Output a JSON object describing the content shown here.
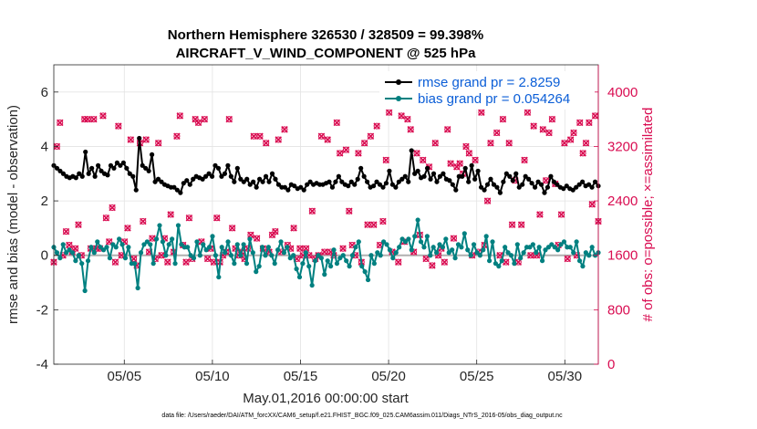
{
  "chart_data": {
    "type": "line",
    "title": "Northern Hemisphere 326530 / 328509 = 99.398%",
    "subtitle": "AIRCRAFT_V_WIND_COMPONENT @ 525 hPa",
    "xlabel": "May.01,2016 00:00:00 start",
    "ylabel_left": "rmse and bias (model - observation)",
    "ylabel_right": "# of obs: o=possible; ×=assimilated",
    "footer": "data file: /Users/raeder/DAI/ATM_forcXX/CAM6_setup/f.e21.FHIST_BGC.f09_025.CAM6assim.011/Diags_NTrS_2016-05/obs_diag_output.nc",
    "x_day_range": [
      1,
      31.9
    ],
    "x_ticks": [
      5,
      10,
      15,
      20,
      25,
      30
    ],
    "x_tick_labels": [
      "05/05",
      "05/10",
      "05/15",
      "05/20",
      "05/25",
      "05/30"
    ],
    "ylim_left": [
      -4,
      7
    ],
    "yticks_left": [
      "6",
      "4",
      "2",
      "0",
      "-2",
      "-4"
    ],
    "ylim_right": [
      0,
      4400
    ],
    "yticks_right": [
      "4000",
      "3200",
      "2400",
      "1600",
      "800",
      "0"
    ],
    "grid": true,
    "legend_location": "top-right",
    "colors": {
      "rmse": "#000000",
      "bias": "#008080",
      "obs": "#d90c51",
      "zero": "#b0b0b0"
    },
    "series": [
      {
        "name": "rmse",
        "legend": "rmse grand pr = 2.8259",
        "color": "#000000",
        "values": [
          3.3,
          3.2,
          3.1,
          3.0,
          2.9,
          2.85,
          2.9,
          2.85,
          3.0,
          2.9,
          3.8,
          3.0,
          3.2,
          2.9,
          3.3,
          3.1,
          3.0,
          2.95,
          3.3,
          3.2,
          3.4,
          3.3,
          3.4,
          3.2,
          3.0,
          2.9,
          2.4,
          4.3,
          3.3,
          3.2,
          3.1,
          3.7,
          2.7,
          2.8,
          2.7,
          2.6,
          2.55,
          2.5,
          2.5,
          2.4,
          2.3,
          2.65,
          2.75,
          2.6,
          2.8,
          2.9,
          2.85,
          2.8,
          2.9,
          3.0,
          2.9,
          3.3,
          3.2,
          2.9,
          3.0,
          3.3,
          2.9,
          2.7,
          3.2,
          2.8,
          2.7,
          2.8,
          2.6,
          2.7,
          2.5,
          2.8,
          2.7,
          2.9,
          2.7,
          3.0,
          2.8,
          2.6,
          2.5,
          2.5,
          2.4,
          2.6,
          2.55,
          2.45,
          2.5,
          2.4,
          2.6,
          2.7,
          2.6,
          2.65,
          2.6,
          2.6,
          2.65,
          2.7,
          2.5,
          2.7,
          2.9,
          2.7,
          2.6,
          2.55,
          2.7,
          2.6,
          2.8,
          3.2,
          2.9,
          2.7,
          2.5,
          2.55,
          2.7,
          2.6,
          2.5,
          2.65,
          3.1,
          2.6,
          2.5,
          2.7,
          2.8,
          2.9,
          2.7,
          3.85,
          3.0,
          3.1,
          2.85,
          2.9,
          3.2,
          2.8,
          3.0,
          2.7,
          2.9,
          3.0,
          2.8,
          2.75,
          2.6,
          2.4,
          2.9,
          2.9,
          3.2,
          2.7,
          3.3,
          2.8,
          3.1,
          2.5,
          2.4,
          2.6,
          2.8,
          2.6,
          2.5,
          2.3,
          2.7,
          3.0,
          2.9,
          2.75,
          3.0,
          2.5,
          2.6,
          2.9,
          2.8,
          2.65,
          2.5,
          2.7,
          2.6,
          2.3,
          2.5,
          2.9,
          2.7,
          2.6,
          2.5,
          2.45,
          2.55,
          2.45,
          2.4,
          2.5,
          2.6,
          2.7,
          2.55,
          2.6,
          2.5,
          2.7,
          2.55
        ]
      },
      {
        "name": "bias",
        "legend": "bias grand pr = 0.054264",
        "color": "#008080",
        "values": [
          0.3,
          0.1,
          -0.1,
          0.4,
          0.1,
          0.2,
          0.1,
          -0.2,
          0.0,
          -0.3,
          -1.3,
          -0.2,
          0.3,
          0.1,
          0.5,
          0.3,
          0.2,
          0.3,
          -0.1,
          0.4,
          0.3,
          0.6,
          0.4,
          -0.1,
          0.3,
          -0.3,
          -0.3,
          -1.2,
          0.1,
          0.4,
          0.5,
          0.4,
          -0.3,
          0.6,
          1.1,
          0.5,
          0.0,
          0.4,
          0.6,
          -0.3,
          1.1,
          0.4,
          0.3,
          0.3,
          0.0,
          -0.1,
          0.5,
          0.0,
          0.4,
          0.2,
          0.3,
          0.7,
          0.0,
          -0.8,
          0.3,
          0.1,
          0.5,
          0.0,
          -0.3,
          0.4,
          0.0,
          0.4,
          -0.3,
          0.6,
          0.1,
          -0.6,
          -0.4,
          0.3,
          0.0,
          0.3,
          0.0,
          -0.3,
          0.2,
          0.5,
          0.1,
          0.3,
          -0.1,
          0.0,
          -0.5,
          -0.8,
          -0.3,
          0.1,
          -0.4,
          -1.1,
          -0.2,
          0.0,
          -0.1,
          -0.7,
          -0.2,
          -0.4,
          0.2,
          -0.3,
          -0.1,
          0.0,
          -0.2,
          -0.4,
          0.0,
          0.3,
          0.5,
          -0.4,
          -0.6,
          -0.9,
          0.0,
          -0.3,
          0.1,
          0.0,
          0.5,
          0.4,
          0.2,
          -0.1,
          0.1,
          0.3,
          0.6,
          0.5,
          0.6,
          0.2,
          0.7,
          1.3,
          0.5,
          0.3,
          0.7,
          0.0,
          0.3,
          0.1,
          0.4,
          0.3,
          0.6,
          0.1,
          0.2,
          -0.1,
          0.4,
          0.3,
          0.8,
          0.2,
          0.0,
          0.4,
          0.1,
          0.0,
          0.2,
          0.7,
          -0.2,
          0.5,
          -0.3,
          -0.4,
          -0.2,
          0.3,
          0.1,
          0.0,
          -0.3,
          0.4,
          -0.1,
          0.1,
          0.3,
          0.3,
          0.4,
          0.1,
          0.3,
          -0.2,
          0.2,
          0.3,
          0.4,
          0.3,
          0.2,
          0.4,
          0.5,
          0.3,
          0.3,
          0.1,
          0.5,
          -0.2,
          -0.4,
          0.1,
          0.0,
          0.3,
          0.0,
          0.1
        ]
      },
      {
        "name": "obs_possible",
        "color": "#d90c51",
        "values": [
          1500,
          3200,
          3550,
          1600,
          1950,
          1750,
          1650,
          1700,
          2050,
          1600,
          3600,
          3600,
          1700,
          3600,
          1700,
          1700,
          3650,
          2150,
          1800,
          2300,
          1500,
          3500,
          1600,
          1800,
          2000,
          3300,
          1550,
          1450,
          3250,
          2100,
          3300,
          1650,
          1850,
          1550,
          3250,
          1600,
          1850,
          1500,
          2200,
          1650,
          3350,
          3650,
          1750,
          1500,
          2150,
          1550,
          3600,
          3550,
          1800,
          3600,
          1550,
          1700,
          1500,
          2150,
          1500,
          1600,
          1650,
          3600,
          2000,
          1700,
          1600,
          1650,
          1550,
          1700,
          1900,
          3350,
          1850,
          3350,
          1700,
          3250,
          1650,
          1900,
          1950,
          3300,
          1650,
          3450,
          1750,
          1700,
          2000,
          1550,
          1700,
          1600,
          1700,
          1600,
          2250,
          1550,
          1600,
          3350,
          1650,
          3300,
          1650,
          1600,
          3550,
          3100,
          1700,
          3150,
          2250,
          1750,
          1600,
          3100,
          1500,
          3250,
          2050,
          3350,
          2050,
          3500,
          1750,
          2100,
          3000,
          3700,
          1650,
          3850,
          1500,
          3650,
          1800,
          3600,
          3450,
          1650,
          3100,
          1900,
          3000,
          1550,
          2900,
          1450,
          3250,
          1600,
          1700,
          1500,
          3450,
          2950,
          1850,
          2900,
          2950,
          2800,
          3200,
          3100,
          1600,
          3000,
          1650,
          3700,
          1750,
          2400,
          3250,
          3800,
          3400,
          1600,
          3600,
          1500,
          3250,
          2050,
          2700,
          1500,
          2050,
          3000,
          3700,
          1600,
          3500,
          1600,
          2200,
          3450,
          2700,
          3400,
          3600,
          2650,
          1750,
          2200,
          3250,
          1550,
          3300,
          3400,
          1600,
          3550,
          3100,
          3250,
          3550,
          2350,
          3650,
          2100
        ]
      },
      {
        "name": "obs_assimilated",
        "color": "#d90c51",
        "values": [
          1500,
          3200,
          3550,
          1600,
          1950,
          1750,
          1650,
          1700,
          2050,
          1600,
          3600,
          3600,
          1700,
          3600,
          1700,
          1700,
          3650,
          2150,
          1800,
          2300,
          1500,
          3500,
          1600,
          1800,
          2000,
          3300,
          1550,
          1450,
          3250,
          2100,
          3300,
          1650,
          1850,
          1550,
          3250,
          1600,
          1850,
          1500,
          2200,
          1650,
          3350,
          3650,
          1750,
          1500,
          2150,
          1550,
          3600,
          3550,
          1800,
          3600,
          1550,
          1700,
          1500,
          2150,
          1500,
          1600,
          1650,
          3600,
          2000,
          1700,
          1600,
          1650,
          1550,
          1700,
          1900,
          3350,
          1850,
          3350,
          1700,
          3250,
          1650,
          1900,
          1950,
          3300,
          1650,
          3450,
          1750,
          1700,
          2000,
          1550,
          1700,
          1600,
          1700,
          1600,
          2250,
          1550,
          1600,
          3350,
          1650,
          3300,
          1650,
          1600,
          3550,
          3100,
          1700,
          3150,
          2250,
          1750,
          1600,
          3100,
          1500,
          3250,
          2050,
          3350,
          2050,
          3500,
          1750,
          2100,
          3000,
          3700,
          1650,
          3850,
          1500,
          3650,
          1800,
          3600,
          3450,
          1650,
          3100,
          1900,
          3000,
          1550,
          2900,
          1450,
          3250,
          1600,
          1700,
          1500,
          3450,
          2950,
          1850,
          2900,
          2950,
          2800,
          3200,
          3100,
          1600,
          3000,
          1650,
          3700,
          1750,
          2400,
          3250,
          3800,
          3400,
          1600,
          3600,
          1500,
          3250,
          2050,
          2700,
          1500,
          2050,
          3000,
          3700,
          1600,
          3500,
          1600,
          2200,
          3450,
          2700,
          3400,
          3600,
          2650,
          1750,
          2200,
          3250,
          1550,
          3300,
          3400,
          1600,
          3550,
          3100,
          3250,
          3550,
          2350,
          3650,
          2100
        ]
      }
    ]
  }
}
